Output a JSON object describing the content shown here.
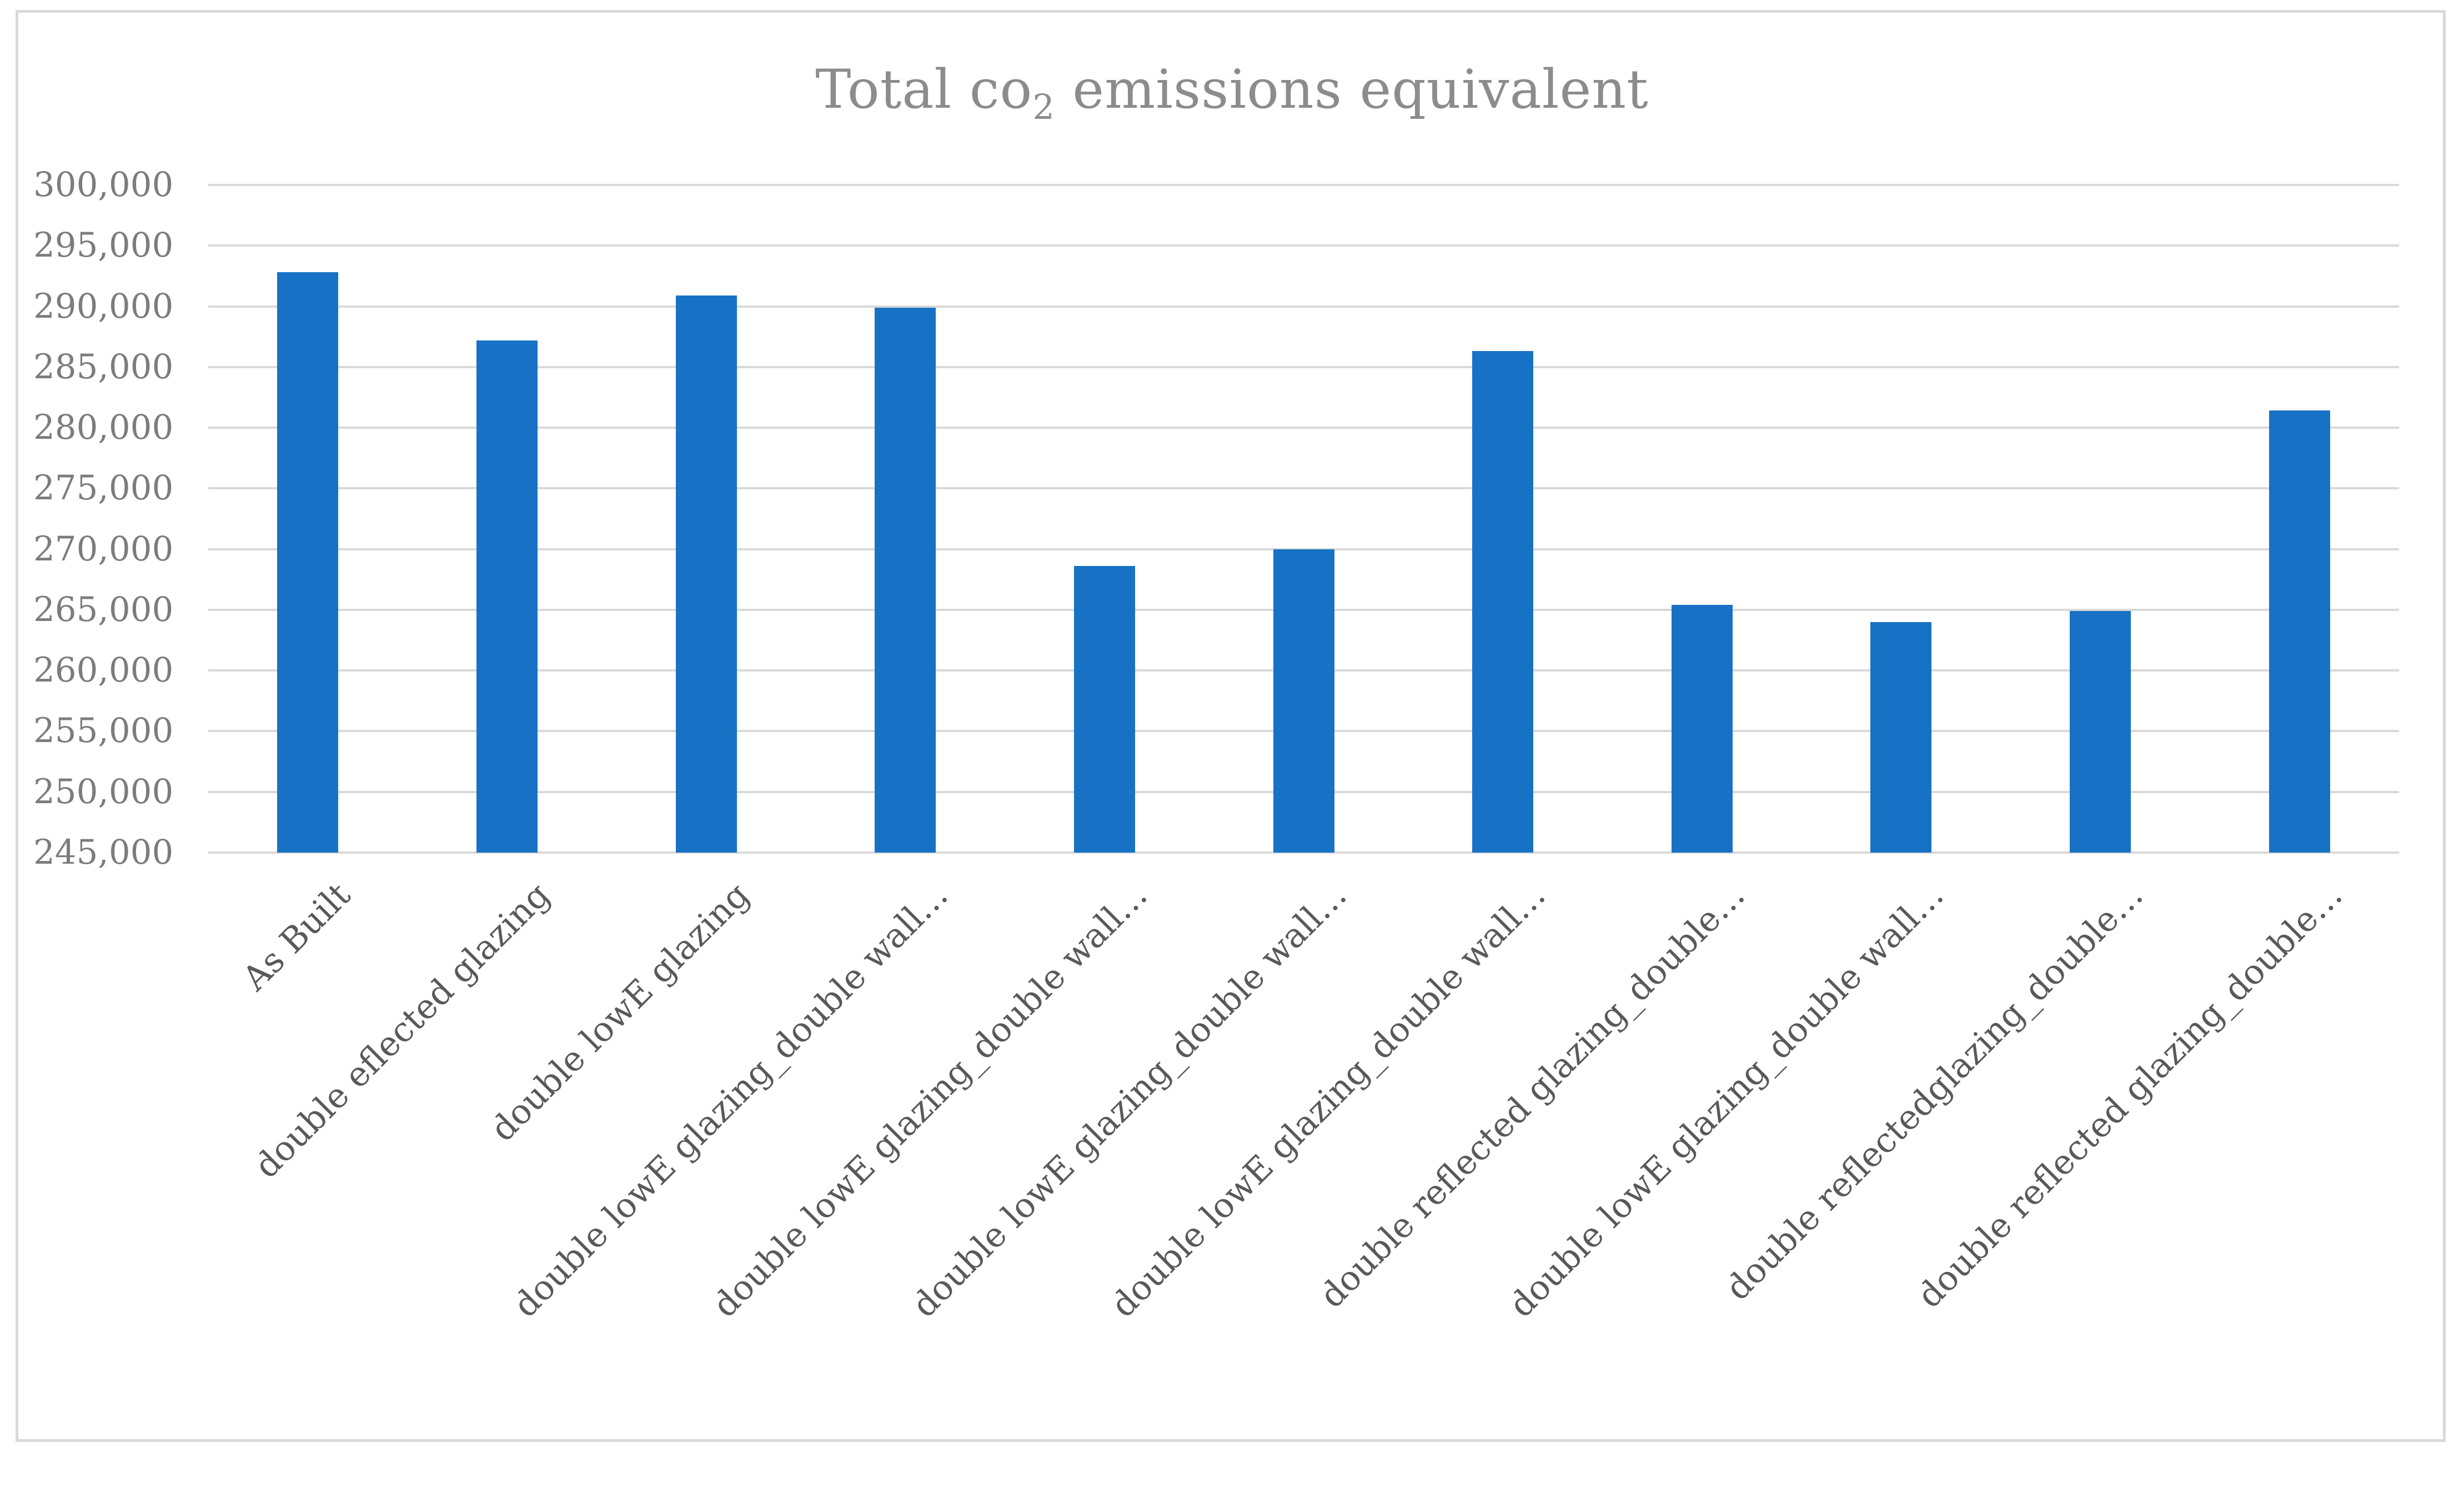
{
  "figure": {
    "background": "#FFFFFF",
    "border_color": "#D9D9D9"
  },
  "title": {
    "prefix": "Total co",
    "subscript": "2",
    "suffix": " emissions equivalent",
    "full": "Total co2 emissions equivalent",
    "color": "#8C8C8C"
  },
  "axis_style": {
    "ytick_color": "#7C7C7C",
    "xtick_color": "#595959",
    "gridline_color": "#D9D9D9"
  },
  "chart_data": {
    "type": "bar",
    "title": "Total co2 emissions equivalent",
    "xlabel": "",
    "ylabel": "",
    "legend_position": "none",
    "grid": "horizontal",
    "bar_color": "#1772C5",
    "ylim": [
      245000,
      300000
    ],
    "ytick_step": 5000,
    "ytick_labels": [
      "300,000",
      "295,000",
      "290,000",
      "285,000",
      "280,000",
      "275,000",
      "270,000",
      "265,000",
      "260,000",
      "255,000",
      "250,000",
      "245,000"
    ],
    "ytick_values": [
      300000,
      295000,
      290000,
      285000,
      280000,
      275000,
      270000,
      265000,
      260000,
      255000,
      250000,
      245000
    ],
    "categories": [
      "As Built",
      "double eflected glazing",
      "double lowE glazing",
      "double lowE glazing_double wall…",
      "double lowE glazing_double wall…",
      "double lowE glazing_double wall…",
      "double lowE glazing_double wall…",
      "double reflected glazing_double…",
      "double lowE glazing_double wall…",
      "double reflectedglazing_double…",
      "double reflected glazing_double…"
    ],
    "values": [
      292800,
      287200,
      290900,
      289900,
      268600,
      270000,
      286300,
      265400,
      264000,
      264900,
      281400
    ]
  }
}
